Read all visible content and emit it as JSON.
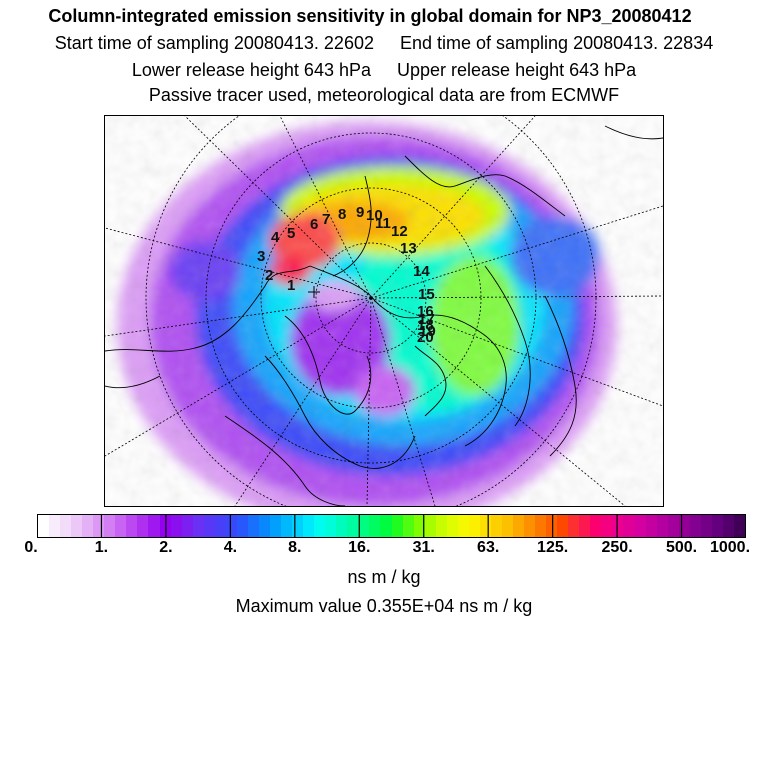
{
  "header": {
    "title": "Column-integrated emission sensitivity in global domain for NP3_20080412",
    "start_sampling": "Start time of sampling 20080413. 22602",
    "end_sampling": "End time of sampling 20080413. 22834",
    "lower_release": "Lower release height  643 hPa",
    "upper_release": "Upper release height  643 hPa",
    "tracer_note": "Passive tracer used, meteorological data are from ECMWF"
  },
  "map": {
    "projection": "polar stereographic (north pole)",
    "trajectory_labels": [
      "1",
      "2",
      "3",
      "4",
      "5",
      "6",
      "7",
      "8",
      "9",
      "10",
      "11",
      "12",
      "13",
      "14",
      "15",
      "16",
      "17",
      "18",
      "19",
      "20"
    ]
  },
  "colorbar": {
    "colors": [
      "#ffffff",
      "#f8ecfc",
      "#f2dcfa",
      "#ecc8f8",
      "#e4b0f6",
      "#dc98f4",
      "#d47ef4",
      "#c864f4",
      "#bc48f2",
      "#b030f0",
      "#a018f0",
      "#9600f0",
      "#8a10f0",
      "#7c20f2",
      "#6a30f4",
      "#5838f6",
      "#4840f8",
      "#3848fa",
      "#2858fc",
      "#1870fc",
      "#0888fc",
      "#00a0fc",
      "#00b8fc",
      "#00d0fc",
      "#00e8fc",
      "#00fcf0",
      "#00fcd8",
      "#00fcbc",
      "#00fca0",
      "#00fc80",
      "#00fc60",
      "#00fc40",
      "#20fc20",
      "#50fc10",
      "#80fc00",
      "#a8fc00",
      "#c8fc00",
      "#e0fc00",
      "#f4f800",
      "#fcf000",
      "#fce000",
      "#fcd000",
      "#fcc000",
      "#fca800",
      "#fc9000",
      "#fc7800",
      "#fc6000",
      "#fc4800",
      "#fc3030",
      "#fc1850",
      "#fc0070",
      "#f40080",
      "#ec0090",
      "#e00098",
      "#d400a0",
      "#c400a0",
      "#b400a0",
      "#a4009c",
      "#940096",
      "#840090",
      "#740088",
      "#640080",
      "#54006c",
      "#400058"
    ],
    "tick_labels": [
      "0.",
      "1.",
      "2.",
      "4.",
      "8.",
      "16.",
      "31.",
      "63.",
      "125.",
      "250.",
      "500.",
      "1000."
    ],
    "units": "ns m / kg"
  },
  "max_value": "Maximum value  0.355E+04 ns m / kg"
}
